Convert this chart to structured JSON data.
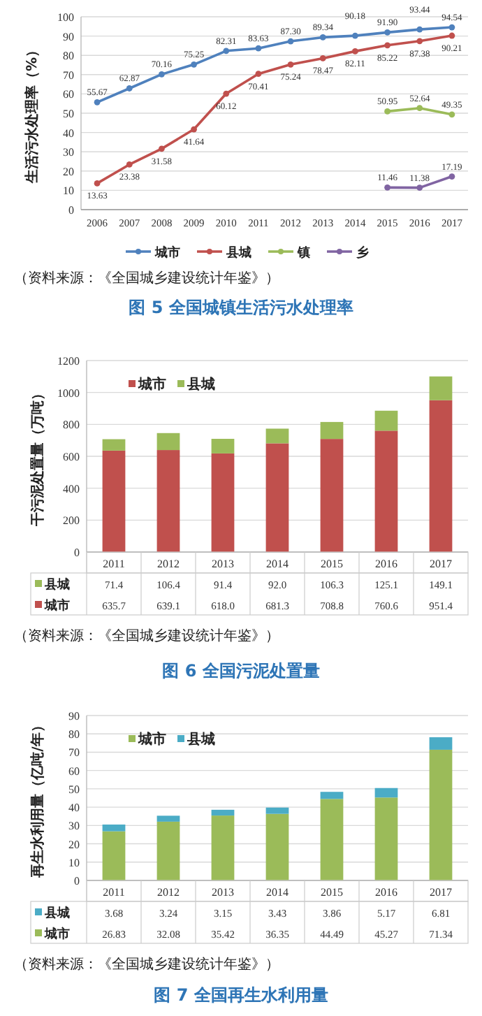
{
  "chart_data": [
    {
      "type": "line",
      "title": "图 5 全国城镇生活污水处理率",
      "ylabel": "生活污水处理率（%）",
      "categories": [
        "2006",
        "2007",
        "2008",
        "2009",
        "2010",
        "2011",
        "2012",
        "2013",
        "2014",
        "2015",
        "2016",
        "2017"
      ],
      "ylim": [
        0,
        100
      ],
      "yticks": [
        0,
        10,
        20,
        30,
        40,
        50,
        60,
        70,
        80,
        90,
        100
      ],
      "grid": "y",
      "legend": "bottom",
      "marker": "circle",
      "annotations": [
        "（资料来源：《全国城乡建设统计年鉴》）"
      ],
      "series": [
        {
          "name": "城市",
          "color": "#4f81bd",
          "values": [
            55.67,
            62.87,
            70.16,
            75.25,
            82.31,
            83.63,
            87.3,
            89.34,
            90.18,
            91.9,
            93.44,
            94.54
          ],
          "value_labels": [
            "55.67",
            "62.87",
            "70.16",
            "75.25",
            "82.31",
            "83.63",
            "87.30",
            "89.34",
            "90.18",
            "91.90",
            "93.44",
            "94.54"
          ]
        },
        {
          "name": "县城",
          "color": "#c0504d",
          "values": [
            13.63,
            23.38,
            31.58,
            41.64,
            60.12,
            70.41,
            75.24,
            78.47,
            82.11,
            85.22,
            87.38,
            90.21
          ],
          "value_labels": [
            "13.63",
            "23.38",
            "31.58",
            "41.64",
            "60.12",
            "70.41",
            "75.24",
            "78.47",
            "82.11",
            "85.22",
            "87.38",
            "90.21"
          ]
        },
        {
          "name": "镇",
          "color": "#9bbb59",
          "values": [
            null,
            null,
            null,
            null,
            null,
            null,
            null,
            null,
            null,
            50.95,
            52.64,
            49.35
          ],
          "value_labels": [
            null,
            null,
            null,
            null,
            null,
            null,
            null,
            null,
            null,
            "50.95",
            "52.64",
            "49.35"
          ]
        },
        {
          "name": "乡",
          "color": "#8064a2",
          "values": [
            null,
            null,
            null,
            null,
            null,
            null,
            null,
            null,
            null,
            11.46,
            11.38,
            17.19
          ],
          "value_labels": [
            null,
            null,
            null,
            null,
            null,
            null,
            null,
            null,
            null,
            "11.46",
            "11.38",
            "17.19"
          ]
        }
      ]
    },
    {
      "type": "bar",
      "stacked": true,
      "title": "图 6 全国污泥处置量",
      "ylabel": "干污泥处置量（万吨）",
      "categories": [
        "2011",
        "2012",
        "2013",
        "2014",
        "2015",
        "2016",
        "2017"
      ],
      "ylim": [
        0,
        1200
      ],
      "yticks": [
        0,
        200,
        400,
        600,
        800,
        1000,
        1200
      ],
      "grid": "y",
      "legend": "top left",
      "annotations": [
        "（资料来源：《全国城乡建设统计年鉴》）"
      ],
      "series": [
        {
          "name": "城市",
          "color": "#c0504d",
          "values": [
            635.7,
            639.1,
            618.0,
            681.3,
            708.8,
            760.6,
            951.4
          ],
          "value_labels": [
            "635.7",
            "639.1",
            "618.0",
            "681.3",
            "708.8",
            "760.6",
            "951.4"
          ]
        },
        {
          "name": "县城",
          "color": "#9bbb59",
          "values": [
            71.4,
            106.4,
            91.4,
            92.0,
            106.3,
            125.1,
            149.1
          ],
          "value_labels": [
            "71.4",
            "106.4",
            "91.4",
            "92.0",
            "106.3",
            "125.1",
            "149.1"
          ]
        }
      ]
    },
    {
      "type": "bar",
      "stacked": true,
      "title": "图 7 全国再生水利用量",
      "ylabel": "再生水利用量（亿吨/年）",
      "categories": [
        "2011",
        "2012",
        "2013",
        "2014",
        "2015",
        "2016",
        "2017"
      ],
      "ylim": [
        0,
        90
      ],
      "yticks": [
        0,
        10,
        20,
        30,
        40,
        50,
        60,
        70,
        80,
        90
      ],
      "grid": "y",
      "legend": "top left",
      "data_labels": true,
      "annotations": [
        "（资料来源：《全国城乡建设统计年鉴》）"
      ],
      "series": [
        {
          "name": "城市",
          "color": "#9bbb59",
          "values": [
            26.83,
            32.08,
            35.42,
            36.35,
            44.49,
            45.27,
            71.34
          ]
        },
        {
          "name": "县城",
          "color": "#4bacc6",
          "values": [
            3.68,
            3.24,
            3.15,
            3.43,
            3.86,
            5.17,
            6.81
          ]
        }
      ]
    }
  ]
}
